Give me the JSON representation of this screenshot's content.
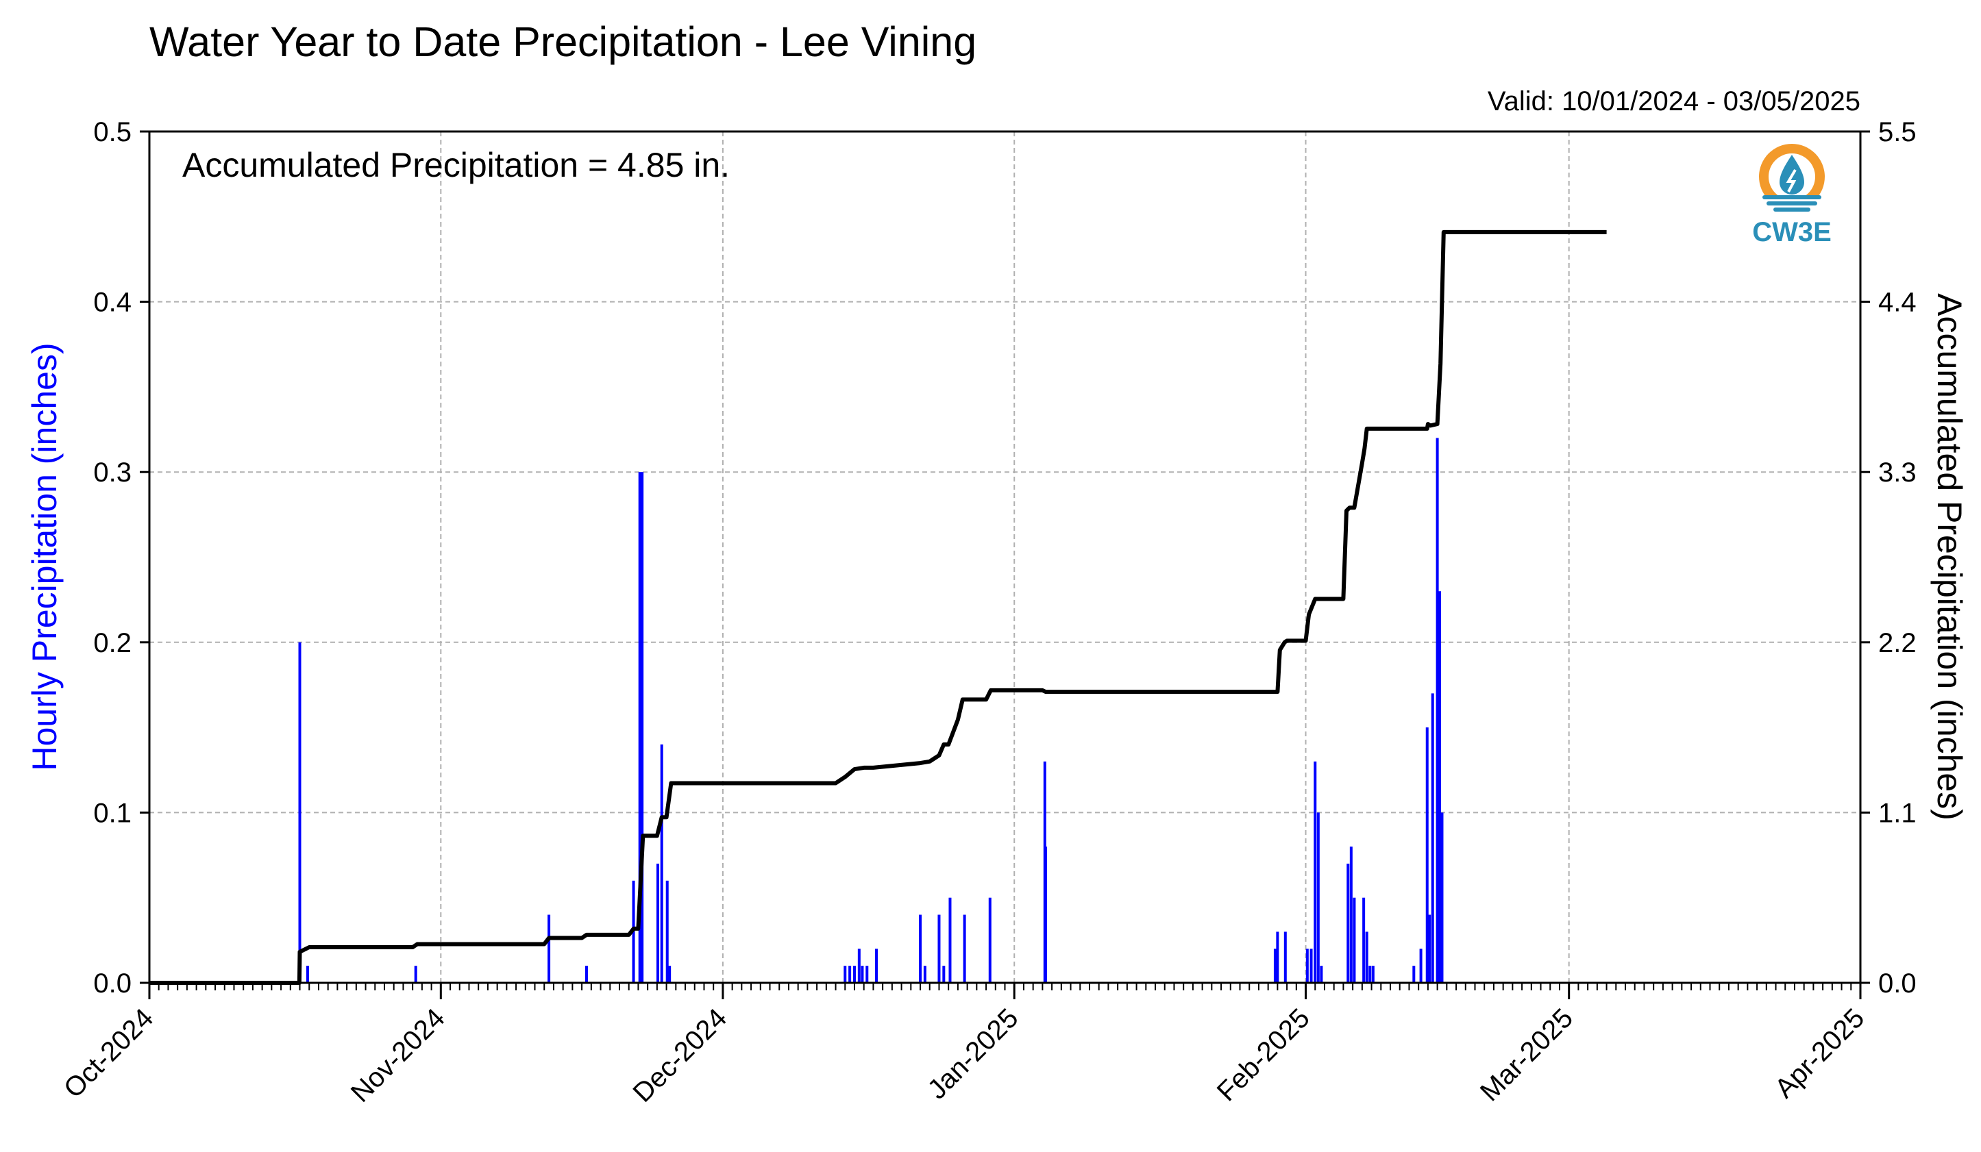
{
  "chart_data": {
    "type": "bar+line",
    "title": "Water Year to Date Precipitation - Lee Vining",
    "valid_text": "Valid: 10/01/2024 - 03/05/2025",
    "annotation": "Accumulated Precipitation = 4.85 in.",
    "logo_text": "CW3E",
    "ylabel_left": "Hourly Precipitation (inches)",
    "ylabel_right": "Accumulated Precipitation (inches)",
    "ylim_left": [
      0,
      0.5
    ],
    "ylim_right": [
      0,
      5.5
    ],
    "yticks_left": [
      "0.0",
      "0.1",
      "0.2",
      "0.3",
      "0.4",
      "0.5"
    ],
    "yticks_right": [
      "0.0",
      "1.1",
      "2.2",
      "3.3",
      "4.4",
      "5.5"
    ],
    "x_range": [
      "2024-10-01",
      "2025-04-01"
    ],
    "xtick_labels": [
      "Oct-2024",
      "Nov-2024",
      "Dec-2024",
      "Jan-2025",
      "Feb-2025",
      "Mar-2025",
      "Apr-2025"
    ],
    "xtick_dates": [
      "2024-10-01",
      "2024-11-01",
      "2024-12-01",
      "2025-01-01",
      "2025-02-01",
      "2025-03-01",
      "2025-04-01"
    ],
    "grid": true,
    "colors": {
      "bars": "#0000ff",
      "line": "#000000",
      "grid": "#b0b0b0",
      "left_label": "#0000ff",
      "logo_orange": "#f39a2b",
      "logo_blue": "#2a8fb8"
    },
    "series": [
      {
        "name": "Hourly Precipitation (inches)",
        "axis": "left",
        "type": "bar",
        "x": [
          "2024-10-17T00:00",
          "2024-10-17T20:00",
          "2024-10-29T08:00",
          "2024-11-12T12:00",
          "2024-11-16T12:00",
          "2024-11-21T12:00",
          "2024-11-22T04:00",
          "2024-11-22T10:00",
          "2024-11-24T02:00",
          "2024-11-24T12:00",
          "2024-11-25T02:00",
          "2024-11-25T08:00",
          "2024-12-14T00:00",
          "2024-12-14T12:00",
          "2024-12-15T00:00",
          "2024-12-15T12:00",
          "2024-12-15T20:00",
          "2024-12-16T08:00",
          "2024-12-17T08:00",
          "2024-12-22T00:00",
          "2024-12-22T12:00",
          "2024-12-24T00:00",
          "2024-12-24T12:00",
          "2024-12-25T04:00",
          "2024-12-26T17:00",
          "2024-12-29T10:00",
          "2025-01-04T06:00",
          "2025-01-04T08:00",
          "2025-01-28T18:00",
          "2025-01-29T00:00",
          "2025-01-29T20:00",
          "2025-02-01T04:00",
          "2025-02-01T14:00",
          "2025-02-02T00:00",
          "2025-02-02T08:00",
          "2025-02-02T16:00",
          "2025-02-05T12:00",
          "2025-02-05T20:00",
          "2025-02-06T04:00",
          "2025-02-07T04:00",
          "2025-02-07T12:00",
          "2025-02-07T20:00",
          "2025-02-08T04:00",
          "2025-02-12T12:00",
          "2025-02-13T06:00",
          "2025-02-13T22:00",
          "2025-02-14T04:00",
          "2025-02-14T12:00",
          "2025-02-15T00:00",
          "2025-02-15T06:00",
          "2025-02-15T12:00"
        ],
        "values": [
          0.2,
          0.01,
          0.01,
          0.04,
          0.01,
          0.06,
          0.3,
          0.3,
          0.07,
          0.14,
          0.06,
          0.01,
          0.01,
          0.01,
          0.01,
          0.02,
          0.01,
          0.01,
          0.02,
          0.04,
          0.01,
          0.04,
          0.01,
          0.05,
          0.04,
          0.05,
          0.13,
          0.08,
          0.02,
          0.03,
          0.03,
          0.02,
          0.02,
          0.13,
          0.1,
          0.01,
          0.07,
          0.08,
          0.05,
          0.05,
          0.03,
          0.01,
          0.01,
          0.01,
          0.02,
          0.15,
          0.04,
          0.17,
          0.32,
          0.23,
          0.1
        ]
      },
      {
        "name": "Accumulated Precipitation (inches)",
        "axis": "right",
        "type": "step",
        "x": [
          "2024-10-01",
          "2024-10-16T23:00",
          "2024-10-17",
          "2024-10-18",
          "2024-10-29",
          "2024-10-29T12:00",
          "2024-11-12",
          "2024-11-12T12:00",
          "2024-11-16",
          "2024-11-16T12:00",
          "2024-11-21",
          "2024-11-21T12:00",
          "2024-11-22",
          "2024-11-22T12:00",
          "2024-11-24",
          "2024-11-24T12:00",
          "2024-11-25",
          "2024-11-25T12:00",
          "2024-12-13",
          "2024-12-14",
          "2024-12-15",
          "2024-12-16",
          "2024-12-17",
          "2024-12-22",
          "2024-12-23",
          "2024-12-24",
          "2024-12-24T12:00",
          "2024-12-25",
          "2024-12-26",
          "2024-12-26T12:00",
          "2024-12-29",
          "2024-12-29T12:00",
          "2025-01-04",
          "2025-01-04T08:00",
          "2025-01-29",
          "2025-01-29T06:00",
          "2025-01-29T18:00",
          "2025-01-30",
          "2025-02-01",
          "2025-02-01T08:00",
          "2025-02-02",
          "2025-02-02T10:00",
          "2025-02-05",
          "2025-02-05T08:00",
          "2025-02-05T16:00",
          "2025-02-06T04:00",
          "2025-02-07",
          "2025-02-07T06:00",
          "2025-02-07T12:00",
          "2025-02-13T22:00",
          "2025-02-14",
          "2025-02-14T06:00",
          "2025-02-15",
          "2025-02-15T08:00",
          "2025-02-15T16:00",
          "2025-03-05"
        ],
        "values": [
          0.0,
          0.0,
          0.2,
          0.23,
          0.23,
          0.25,
          0.25,
          0.29,
          0.29,
          0.31,
          0.31,
          0.35,
          0.35,
          0.95,
          0.95,
          1.07,
          1.07,
          1.29,
          1.29,
          1.33,
          1.38,
          1.39,
          1.39,
          1.42,
          1.43,
          1.47,
          1.54,
          1.54,
          1.7,
          1.83,
          1.83,
          1.89,
          1.89,
          1.88,
          1.88,
          2.15,
          2.2,
          2.21,
          2.21,
          2.38,
          2.48,
          2.48,
          2.48,
          3.05,
          3.07,
          3.07,
          3.36,
          3.45,
          3.58,
          3.58,
          3.61,
          3.6,
          3.61,
          4.0,
          4.85,
          4.85
        ]
      }
    ]
  }
}
